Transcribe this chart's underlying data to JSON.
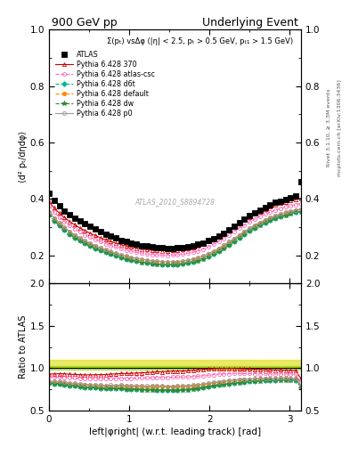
{
  "title_left": "900 GeV pp",
  "title_right": "Underlying Event",
  "subtitle": "Σ(pₜ) vsΔφ (|η| < 2.5, pₜ > 0.5 GeV, pₜ₁ > 1.5 GeV)",
  "right_label1": "Rivet 3.1.10, ≥ 3.3M events",
  "right_label2": "mcplots.cern.ch [arXiv:1306.3436]",
  "watermark": "ATLAS_2010_S8894728",
  "ylabel_main": "⟨d² pₜ/dηdφ⟩",
  "ylabel_ratio": "Ratio to ATLAS",
  "xlabel": "left|φright| (w.r.t. leading track) [rad]",
  "xlim": [
    0,
    3.14159
  ],
  "ylim_main": [
    0.1,
    1.0
  ],
  "ylim_ratio": [
    0.5,
    2.0
  ],
  "yticks_main": [
    0.2,
    0.4,
    0.6,
    0.8,
    1.0
  ],
  "yticks_ratio": [
    0.5,
    1.0,
    1.5,
    2.0
  ],
  "xticks": [
    0,
    1,
    2,
    3
  ],
  "n_points": 50,
  "series": [
    {
      "label": "ATLAS",
      "color": "black",
      "marker": "s",
      "markersize": 4,
      "linestyle": "none",
      "fillstyle": "full",
      "main_values": [
        0.42,
        0.395,
        0.375,
        0.358,
        0.345,
        0.333,
        0.322,
        0.312,
        0.302,
        0.293,
        0.284,
        0.276,
        0.268,
        0.261,
        0.254,
        0.249,
        0.244,
        0.239,
        0.235,
        0.232,
        0.229,
        0.227,
        0.226,
        0.225,
        0.225,
        0.226,
        0.228,
        0.231,
        0.234,
        0.239,
        0.244,
        0.251,
        0.259,
        0.268,
        0.279,
        0.291,
        0.303,
        0.316,
        0.328,
        0.34,
        0.351,
        0.361,
        0.37,
        0.379,
        0.387,
        0.393,
        0.399,
        0.405,
        0.411,
        0.46
      ],
      "is_data": true
    },
    {
      "label": "Pythia 6.428 370",
      "color": "#cc0000",
      "marker": "^",
      "markersize": 3,
      "linestyle": "-",
      "fillstyle": "none",
      "main_values": [
        0.39,
        0.368,
        0.35,
        0.334,
        0.32,
        0.308,
        0.297,
        0.287,
        0.278,
        0.27,
        0.262,
        0.255,
        0.249,
        0.243,
        0.238,
        0.233,
        0.229,
        0.225,
        0.222,
        0.22,
        0.218,
        0.217,
        0.216,
        0.216,
        0.217,
        0.218,
        0.22,
        0.224,
        0.228,
        0.234,
        0.24,
        0.248,
        0.257,
        0.267,
        0.278,
        0.29,
        0.302,
        0.314,
        0.325,
        0.336,
        0.346,
        0.355,
        0.363,
        0.371,
        0.378,
        0.384,
        0.389,
        0.394,
        0.399,
        0.402
      ],
      "is_data": false
    },
    {
      "label": "Pythia 6.428 atlas-csc",
      "color": "#ff69b4",
      "marker": "o",
      "markersize": 3,
      "linestyle": "--",
      "fillstyle": "none",
      "main_values": [
        0.375,
        0.353,
        0.335,
        0.319,
        0.306,
        0.294,
        0.283,
        0.273,
        0.264,
        0.256,
        0.248,
        0.241,
        0.235,
        0.229,
        0.224,
        0.219,
        0.215,
        0.211,
        0.208,
        0.205,
        0.203,
        0.202,
        0.201,
        0.2,
        0.201,
        0.202,
        0.204,
        0.207,
        0.211,
        0.216,
        0.222,
        0.23,
        0.239,
        0.249,
        0.26,
        0.272,
        0.284,
        0.296,
        0.307,
        0.318,
        0.328,
        0.337,
        0.346,
        0.353,
        0.36,
        0.366,
        0.371,
        0.376,
        0.38,
        0.383
      ],
      "is_data": false
    },
    {
      "label": "Pythia 6.428 d6t",
      "color": "#00bb99",
      "marker": "D",
      "markersize": 3,
      "linestyle": "--",
      "fillstyle": "full",
      "main_values": [
        0.345,
        0.323,
        0.305,
        0.289,
        0.275,
        0.263,
        0.252,
        0.242,
        0.233,
        0.225,
        0.217,
        0.21,
        0.204,
        0.198,
        0.192,
        0.187,
        0.183,
        0.179,
        0.176,
        0.173,
        0.171,
        0.169,
        0.168,
        0.167,
        0.167,
        0.168,
        0.17,
        0.173,
        0.177,
        0.182,
        0.188,
        0.196,
        0.205,
        0.215,
        0.226,
        0.238,
        0.25,
        0.263,
        0.275,
        0.287,
        0.298,
        0.308,
        0.317,
        0.325,
        0.333,
        0.339,
        0.344,
        0.349,
        0.353,
        0.357
      ],
      "is_data": false
    },
    {
      "label": "Pythia 6.428 default",
      "color": "#ff8800",
      "marker": "o",
      "markersize": 3,
      "linestyle": "--",
      "fillstyle": "full",
      "main_values": [
        0.352,
        0.33,
        0.312,
        0.296,
        0.282,
        0.27,
        0.259,
        0.249,
        0.24,
        0.232,
        0.224,
        0.217,
        0.211,
        0.205,
        0.2,
        0.195,
        0.19,
        0.186,
        0.183,
        0.18,
        0.178,
        0.177,
        0.176,
        0.175,
        0.175,
        0.176,
        0.178,
        0.181,
        0.185,
        0.19,
        0.196,
        0.204,
        0.213,
        0.223,
        0.234,
        0.246,
        0.258,
        0.271,
        0.283,
        0.294,
        0.305,
        0.315,
        0.324,
        0.332,
        0.339,
        0.345,
        0.35,
        0.355,
        0.359,
        0.362
      ],
      "is_data": false
    },
    {
      "label": "Pythia 6.428 dw",
      "color": "#338833",
      "marker": "*",
      "markersize": 4,
      "linestyle": "--",
      "fillstyle": "full",
      "main_values": [
        0.345,
        0.323,
        0.305,
        0.289,
        0.275,
        0.263,
        0.252,
        0.242,
        0.233,
        0.225,
        0.217,
        0.21,
        0.204,
        0.198,
        0.192,
        0.187,
        0.183,
        0.179,
        0.175,
        0.172,
        0.17,
        0.168,
        0.167,
        0.166,
        0.166,
        0.167,
        0.169,
        0.172,
        0.176,
        0.181,
        0.187,
        0.195,
        0.204,
        0.214,
        0.225,
        0.237,
        0.249,
        0.262,
        0.274,
        0.286,
        0.297,
        0.307,
        0.316,
        0.324,
        0.331,
        0.337,
        0.342,
        0.347,
        0.352,
        0.355
      ],
      "is_data": false
    },
    {
      "label": "Pythia 6.428 p0",
      "color": "#999999",
      "marker": "o",
      "markersize": 3,
      "linestyle": "-",
      "fillstyle": "none",
      "main_values": [
        0.355,
        0.333,
        0.315,
        0.299,
        0.285,
        0.273,
        0.262,
        0.252,
        0.243,
        0.235,
        0.227,
        0.22,
        0.214,
        0.208,
        0.203,
        0.198,
        0.193,
        0.189,
        0.186,
        0.183,
        0.181,
        0.179,
        0.178,
        0.177,
        0.177,
        0.178,
        0.18,
        0.183,
        0.187,
        0.192,
        0.198,
        0.206,
        0.215,
        0.225,
        0.236,
        0.248,
        0.26,
        0.273,
        0.285,
        0.296,
        0.307,
        0.317,
        0.326,
        0.334,
        0.341,
        0.347,
        0.352,
        0.357,
        0.361,
        0.364
      ],
      "is_data": false
    }
  ],
  "ratio_band_color": "#dddd00",
  "ratio_band_alpha": 0.6,
  "ratio_band_low": 1.0,
  "ratio_band_high": 1.1,
  "ratio_line_color": "#88cc00",
  "ratio_line_low": 0.98,
  "ratio_line_high": 1.02
}
